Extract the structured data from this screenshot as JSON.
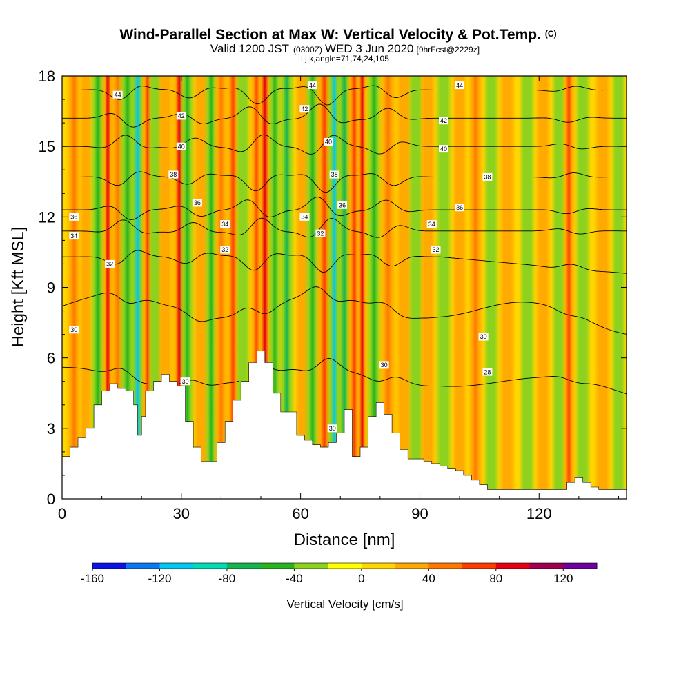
{
  "chart_data": {
    "type": "heatmap",
    "title": "Wind-Parallel Section at Max W: Vertical Velocity & Pot.Temp.",
    "title_mark": "(C)",
    "subtitle": {
      "valid": "Valid 1200 JST",
      "utc": "(0300Z)",
      "date": "WED 3 Jun 2020",
      "forecast": "[9hrFcst@2229z]"
    },
    "params": "i,j,k,angle=71,74,24,105",
    "xlabel": "Distance [nm]",
    "ylabel": "Height [Kft MSL]",
    "xlim": [
      0,
      142
    ],
    "ylim": [
      0,
      18
    ],
    "xticks": [
      "0",
      "30",
      "60",
      "90",
      "120"
    ],
    "xtick_values": [
      0,
      30,
      60,
      90,
      120
    ],
    "yticks": [
      "0",
      "3",
      "6",
      "9",
      "12",
      "15",
      "18"
    ],
    "ytick_values": [
      0,
      3,
      6,
      9,
      12,
      15,
      18
    ],
    "colorbar": {
      "title": "Vertical Velocity [cm/s]",
      "min": -160,
      "max": 140,
      "step": 20,
      "labels": [
        "-160",
        "-120",
        "-80",
        "-40",
        "0",
        "40",
        "80",
        "120"
      ],
      "label_values": [
        -160,
        -120,
        -80,
        -40,
        0,
        40,
        80,
        120
      ],
      "colors": [
        "#0a14e6",
        "#0a78f0",
        "#00c8f0",
        "#00dcb4",
        "#14b450",
        "#28b41e",
        "#8cd21e",
        "#ffff00",
        "#ffd700",
        "#ffaa00",
        "#ff7800",
        "#ff3c00",
        "#e60014",
        "#a00050",
        "#6e00a0"
      ]
    },
    "terrain_top_kft": [
      [
        0,
        1.8
      ],
      [
        2,
        2.2
      ],
      [
        4,
        2.6
      ],
      [
        6,
        3.0
      ],
      [
        8,
        4.0
      ],
      [
        10,
        4.6
      ],
      [
        12,
        4.9
      ],
      [
        14,
        4.7
      ],
      [
        16,
        4.6
      ],
      [
        18,
        4.0
      ],
      [
        19,
        2.7
      ],
      [
        20,
        3.5
      ],
      [
        21,
        4.6
      ],
      [
        23,
        5.0
      ],
      [
        25,
        5.3
      ],
      [
        27,
        5.0
      ],
      [
        29,
        4.8
      ],
      [
        31,
        3.3
      ],
      [
        33,
        2.2
      ],
      [
        35,
        1.6
      ],
      [
        37,
        1.6
      ],
      [
        39,
        2.4
      ],
      [
        41,
        3.3
      ],
      [
        43,
        4.2
      ],
      [
        45,
        5.0
      ],
      [
        47,
        5.8
      ],
      [
        49,
        6.3
      ],
      [
        51,
        5.8
      ],
      [
        53,
        4.5
      ],
      [
        55,
        3.7
      ],
      [
        57,
        3.7
      ],
      [
        59,
        2.7
      ],
      [
        61,
        2.5
      ],
      [
        63,
        2.3
      ],
      [
        65,
        2.2
      ],
      [
        67,
        2.4
      ],
      [
        69,
        2.8
      ],
      [
        71,
        3.8
      ],
      [
        73,
        1.8
      ],
      [
        75,
        2.2
      ],
      [
        77,
        3.5
      ],
      [
        79,
        4.1
      ],
      [
        81,
        3.6
      ],
      [
        83,
        2.8
      ],
      [
        85,
        2.1
      ],
      [
        87,
        1.7
      ],
      [
        89,
        1.7
      ],
      [
        91,
        1.6
      ],
      [
        93,
        1.5
      ],
      [
        95,
        1.4
      ],
      [
        97,
        1.3
      ],
      [
        99,
        1.2
      ],
      [
        101,
        1.0
      ],
      [
        103,
        0.8
      ],
      [
        105,
        0.6
      ],
      [
        107,
        0.4
      ],
      [
        109,
        0.4
      ],
      [
        111,
        0.4
      ],
      [
        113,
        0.4
      ],
      [
        115,
        0.4
      ],
      [
        117,
        0.4
      ],
      [
        119,
        0.4
      ],
      [
        121,
        0.4
      ],
      [
        123,
        0.4
      ],
      [
        125,
        0.4
      ],
      [
        127,
        0.7
      ],
      [
        129,
        0.9
      ],
      [
        131,
        0.7
      ],
      [
        133,
        0.5
      ],
      [
        135,
        0.4
      ],
      [
        137,
        0.4
      ],
      [
        139,
        0.4
      ],
      [
        142,
        0.4
      ]
    ],
    "velocity_bands": [
      {
        "x": 3,
        "w": 1.5,
        "value": 50
      },
      {
        "x": 6,
        "w": 1.2,
        "value": 25
      },
      {
        "x": 9,
        "w": 1.5,
        "value": -45
      },
      {
        "x": 11.5,
        "w": 1.3,
        "value": 90
      },
      {
        "x": 14,
        "w": 1.5,
        "value": 40
      },
      {
        "x": 16.5,
        "w": 1.7,
        "value": -60
      },
      {
        "x": 19,
        "w": 1.7,
        "value": -105
      },
      {
        "x": 21.5,
        "w": 1.3,
        "value": 70
      },
      {
        "x": 23.5,
        "w": 1.4,
        "value": -40
      },
      {
        "x": 26,
        "w": 1.5,
        "value": 30
      },
      {
        "x": 29.5,
        "w": 1.6,
        "value": 80
      },
      {
        "x": 31.5,
        "w": 1.4,
        "value": -60
      },
      {
        "x": 35,
        "w": 1.6,
        "value": 25
      },
      {
        "x": 37.5,
        "w": 1.3,
        "value": -45
      },
      {
        "x": 40,
        "w": 1.4,
        "value": 45
      },
      {
        "x": 43,
        "w": 1.5,
        "value": 70
      },
      {
        "x": 45.5,
        "w": 1.4,
        "value": -35
      },
      {
        "x": 49,
        "w": 1.5,
        "value": 60
      },
      {
        "x": 51,
        "w": 1.6,
        "value": 90
      },
      {
        "x": 53.5,
        "w": 1.3,
        "value": -50
      },
      {
        "x": 56.5,
        "w": 1.5,
        "value": -75
      },
      {
        "x": 60.5,
        "w": 1.5,
        "value": 35
      },
      {
        "x": 63,
        "w": 1.5,
        "value": -55
      },
      {
        "x": 66,
        "w": 1.7,
        "value": 60
      },
      {
        "x": 68.5,
        "w": 1.5,
        "value": -120
      },
      {
        "x": 71,
        "w": 1.6,
        "value": -75
      },
      {
        "x": 73.5,
        "w": 1.5,
        "value": 70
      },
      {
        "x": 75.5,
        "w": 1.2,
        "value": 85
      },
      {
        "x": 78.5,
        "w": 1.5,
        "value": -45
      },
      {
        "x": 82,
        "w": 1.7,
        "value": 55
      },
      {
        "x": 86,
        "w": 1.6,
        "value": 25
      },
      {
        "x": 89,
        "w": 1.5,
        "value": -35
      },
      {
        "x": 92,
        "w": 1.6,
        "value": 30
      },
      {
        "x": 96,
        "w": 1.6,
        "value": -30
      },
      {
        "x": 100,
        "w": 1.5,
        "value": 25
      },
      {
        "x": 104,
        "w": 1.5,
        "value": 40
      },
      {
        "x": 108,
        "w": 1.5,
        "value": -30
      },
      {
        "x": 112,
        "w": 1.6,
        "value": 25
      },
      {
        "x": 117,
        "w": 1.5,
        "value": -30
      },
      {
        "x": 121,
        "w": 1.5,
        "value": 30
      },
      {
        "x": 125,
        "w": 1.4,
        "value": -35
      },
      {
        "x": 127.5,
        "w": 1.3,
        "value": 75
      },
      {
        "x": 131,
        "w": 1.5,
        "value": -35
      },
      {
        "x": 136,
        "w": 1.6,
        "value": 25
      },
      {
        "x": 140,
        "w": 1.4,
        "value": -30
      }
    ],
    "theta_contours": [
      {
        "value": 28,
        "label": "28"
      },
      {
        "value": 30,
        "label": "30"
      },
      {
        "value": 32,
        "label": "32"
      },
      {
        "value": 34,
        "label": "34"
      },
      {
        "value": 36,
        "label": "36"
      },
      {
        "value": 38,
        "label": "38"
      },
      {
        "value": 40,
        "label": "40"
      },
      {
        "value": 42,
        "label": "42"
      },
      {
        "value": 44,
        "label": "44"
      }
    ],
    "contour_labels": [
      {
        "text": "44",
        "x": 14,
        "y": 17.2
      },
      {
        "text": "44",
        "x": 63,
        "y": 17.6
      },
      {
        "text": "44",
        "x": 100,
        "y": 17.6
      },
      {
        "text": "42",
        "x": 30,
        "y": 16.3
      },
      {
        "text": "42",
        "x": 61,
        "y": 16.6
      },
      {
        "text": "42",
        "x": 96,
        "y": 16.1
      },
      {
        "text": "40",
        "x": 30,
        "y": 15.0
      },
      {
        "text": "40",
        "x": 67,
        "y": 15.2
      },
      {
        "text": "40",
        "x": 96,
        "y": 14.9
      },
      {
        "text": "38",
        "x": 28,
        "y": 13.8
      },
      {
        "text": "38",
        "x": 68.5,
        "y": 13.8
      },
      {
        "text": "38",
        "x": 107,
        "y": 13.7
      },
      {
        "text": "36",
        "x": 3,
        "y": 12.0
      },
      {
        "text": "36",
        "x": 34,
        "y": 12.6
      },
      {
        "text": "36",
        "x": 70.5,
        "y": 12.5
      },
      {
        "text": "36",
        "x": 100,
        "y": 12.4
      },
      {
        "text": "34",
        "x": 3,
        "y": 11.2
      },
      {
        "text": "34",
        "x": 41,
        "y": 11.7
      },
      {
        "text": "34",
        "x": 61,
        "y": 12.0
      },
      {
        "text": "34",
        "x": 93,
        "y": 11.7
      },
      {
        "text": "32",
        "x": 12,
        "y": 10.0
      },
      {
        "text": "32",
        "x": 41,
        "y": 10.6
      },
      {
        "text": "32",
        "x": 65,
        "y": 11.3
      },
      {
        "text": "32",
        "x": 94,
        "y": 10.6
      },
      {
        "text": "30",
        "x": 3,
        "y": 7.2
      },
      {
        "text": "30",
        "x": 31,
        "y": 5.0
      },
      {
        "text": "30",
        "x": 68,
        "y": 3.0
      },
      {
        "text": "30",
        "x": 81,
        "y": 5.7
      },
      {
        "text": "30",
        "x": 106,
        "y": 6.9
      },
      {
        "text": "28",
        "x": 107,
        "y": 5.4
      }
    ],
    "grid": false,
    "colorbar_position": "bottom"
  }
}
